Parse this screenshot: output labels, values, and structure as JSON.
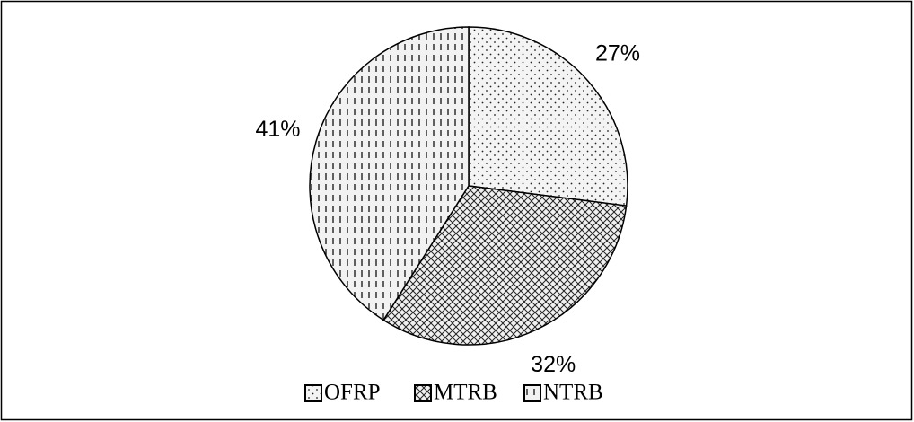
{
  "chart_data": {
    "type": "pie",
    "categories": [
      "OFRP",
      "MTRB",
      "NTRB"
    ],
    "values": [
      27,
      32,
      41
    ],
    "value_labels": [
      "27%",
      "32%",
      "41%"
    ],
    "legend": "bottom"
  }
}
